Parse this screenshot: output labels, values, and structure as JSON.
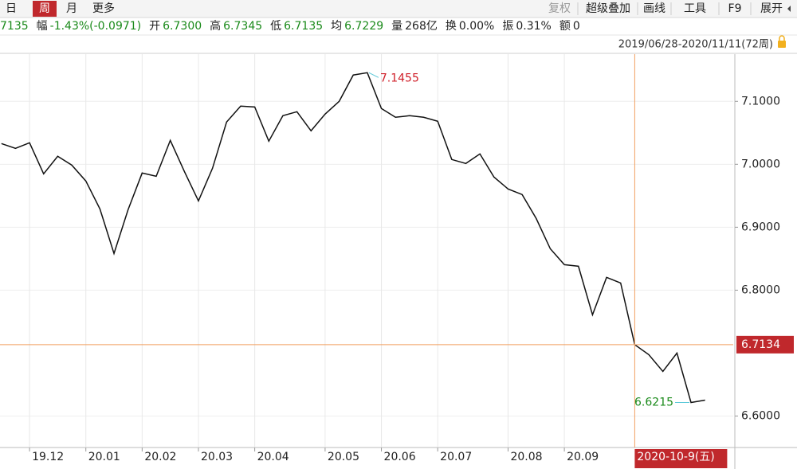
{
  "toolbar": {
    "periods": [
      "日",
      "周",
      "月",
      "更多"
    ],
    "selected_period": 1,
    "tools": [
      "复权",
      "超级叠加",
      "画线",
      "工具",
      "F9",
      "展开"
    ]
  },
  "quote": [
    {
      "value": "7135",
      "color": "#1a8a1a"
    },
    {
      "label": "幅",
      "value": "-1.43%(-0.0971)",
      "color": "#1a8a1a"
    },
    {
      "label": "开",
      "value": "6.7300",
      "color": "#1a8a1a"
    },
    {
      "label": "高",
      "value": "6.7345",
      "color": "#1a8a1a"
    },
    {
      "label": "低",
      "value": "6.7135",
      "color": "#1a8a1a"
    },
    {
      "label": "均",
      "value": "6.7229",
      "color": "#1a8a1a"
    },
    {
      "label": "量",
      "value": "268亿",
      "color": "#222222"
    },
    {
      "label": "换",
      "value": "0.00%",
      "color": "#222222"
    },
    {
      "label": "振",
      "value": "0.31%",
      "color": "#222222"
    },
    {
      "label": "额",
      "value": "0",
      "color": "#222222"
    }
  ],
  "range": "2019/06/28-2020/11/11(72周)",
  "chart_data": {
    "type": "line",
    "series": [
      {
        "color": "#111111",
        "values": [
          7.0329,
          7.0253,
          7.0342,
          6.9848,
          7.0127,
          6.9987,
          6.9734,
          6.9291,
          6.8582,
          6.9278,
          6.9861,
          6.981,
          7.038,
          6.9886,
          6.9418,
          6.9937,
          7.0671,
          7.0924,
          7.0911,
          7.0367,
          7.0772,
          7.0835,
          7.0532,
          7.0797,
          7.1,
          7.1418,
          7.1455,
          7.0886,
          7.0747,
          7.0772,
          7.0747,
          7.0684,
          7.0076,
          7.0013,
          7.0165,
          6.9797,
          6.9608,
          6.9519,
          6.9139,
          6.8658,
          6.8405,
          6.838,
          6.7608,
          6.8203,
          6.8114,
          6.7134,
          6.6975,
          6.6709,
          6.7,
          6.6215,
          6.6253
        ]
      }
    ],
    "max_index": 26,
    "min_index": 49,
    "max_color": "#d0202a",
    "min_color": "#1a8a1a",
    "xlim": [
      -0.1,
      52
    ],
    "xticks": [
      {
        "value": 2,
        "label": "19.12"
      },
      {
        "value": 6,
        "label": "20.01"
      },
      {
        "value": 10,
        "label": "20.02"
      },
      {
        "value": 14,
        "label": "20.03"
      },
      {
        "value": 18,
        "label": "20.04"
      },
      {
        "value": 23,
        "label": "20.05"
      },
      {
        "value": 27,
        "label": "20.06"
      },
      {
        "value": 31,
        "label": "20.07"
      },
      {
        "value": 36,
        "label": "20.08"
      },
      {
        "value": 40,
        "label": "20.09"
      }
    ],
    "ylim": [
      6.55,
      7.175
    ],
    "yticks": [
      {
        "value": 6.6,
        "label": "6.6000"
      },
      {
        "value": 6.8,
        "label": "6.8000"
      },
      {
        "value": 6.9,
        "label": "6.9000"
      },
      {
        "value": 7.0,
        "label": "7.0000"
      },
      {
        "value": 7.1,
        "label": "7.1000"
      }
    ],
    "grid": true,
    "cursor_index": 45,
    "cursor_price": 6.7134,
    "cursor_date": "2020-10-9(五)",
    "cursor_color": "#f0a060",
    "cursor_box_color": "#c0282c"
  }
}
